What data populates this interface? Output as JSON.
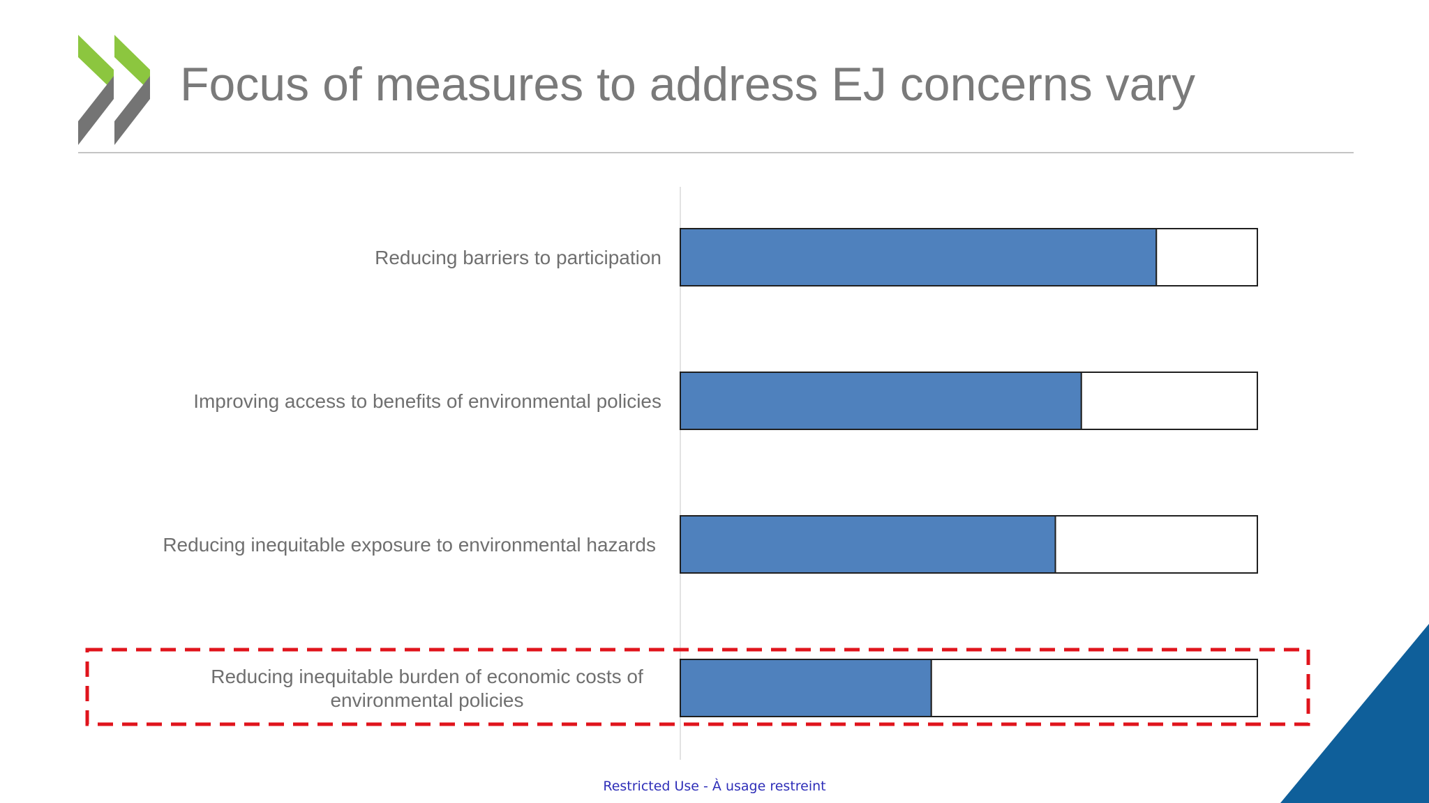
{
  "slide": {
    "title": "Focus of measures to address EJ concerns vary",
    "footer": "Restricted Use - À usage restreint"
  },
  "colors": {
    "bar_fill": "#4f81bd",
    "bar_outline": "#1f1f1f",
    "highlight_box": "#e0141c",
    "logo_green": "#8cc63f",
    "logo_gray": "#747474",
    "corner_blue": "#0f5f9a"
  },
  "icons": [
    "oecd-chevron-logo-icon"
  ],
  "chart_data": {
    "type": "bar",
    "orientation": "horizontal",
    "stacked": true,
    "categories": [
      "Reducing barriers to participation",
      "Improving access to benefits of environmental policies",
      "Reducing inequitable exposure to environmental hazards",
      "Reducing inequitable burden of economic costs of environmental policies"
    ],
    "series": [
      {
        "values": [
          82.5,
          69.5,
          65,
          43.5
        ]
      },
      {
        "values": [
          17.5,
          30.5,
          35,
          56.5
        ]
      }
    ],
    "xlim": [
      0,
      100
    ],
    "xlabel": "",
    "ylabel": "",
    "grid": false,
    "legend": "none",
    "highlighted_category_index": 3
  }
}
